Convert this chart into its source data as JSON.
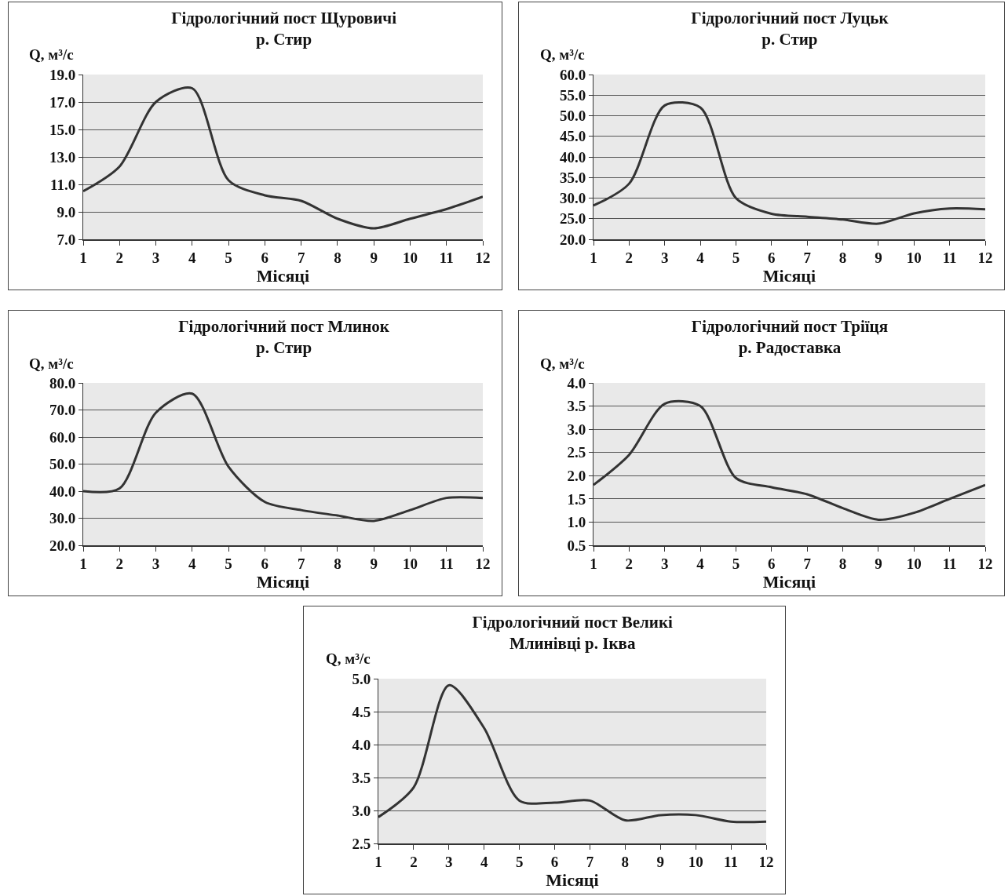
{
  "chart_data": [
    {
      "type": "line",
      "title": "Гідрологічний пост Щуровичі\nр. Стир",
      "xlabel": "Місяці",
      "ylabel": "Q, м³/с",
      "x": [
        1,
        2,
        3,
        4,
        5,
        6,
        7,
        8,
        9,
        10,
        11,
        12
      ],
      "series": [
        {
          "color": "#333333",
          "values": [
            10.5,
            12.3,
            17.0,
            18.0,
            11.3,
            10.2,
            9.8,
            8.5,
            7.8,
            8.5,
            9.2,
            10.1
          ]
        }
      ],
      "xlim": [
        1,
        12
      ],
      "xticks": [
        1,
        2,
        3,
        4,
        5,
        6,
        7,
        8,
        9,
        10,
        11,
        12
      ],
      "ylim": [
        7,
        19
      ],
      "yticks": [
        {
          "value": 7,
          "label": "7.0"
        },
        {
          "value": 9,
          "label": "9.0"
        },
        {
          "value": 11,
          "label": "11.0"
        },
        {
          "value": 13,
          "label": "13.0"
        },
        {
          "value": 15,
          "label": "15.0"
        },
        {
          "value": 17,
          "label": "17.0"
        },
        {
          "value": 19,
          "label": "19.0"
        }
      ],
      "grid": "y",
      "marker": "none",
      "line_style": "solid"
    },
    {
      "type": "line",
      "title": "Гідрологічний пост Луцьк\nр. Стир",
      "xlabel": "Місяці",
      "ylabel": "Q, м³/с",
      "x": [
        1,
        2,
        3,
        4,
        5,
        6,
        7,
        8,
        9,
        10,
        11,
        12
      ],
      "series": [
        {
          "color": "#333333",
          "values": [
            28.2,
            33.5,
            52.5,
            52.0,
            30.0,
            26.2,
            25.5,
            24.8,
            23.8,
            26.3,
            27.5,
            27.3
          ]
        }
      ],
      "xlim": [
        1,
        12
      ],
      "xticks": [
        1,
        2,
        3,
        4,
        5,
        6,
        7,
        8,
        9,
        10,
        11,
        12
      ],
      "ylim": [
        20,
        60
      ],
      "yticks": [
        {
          "value": 20,
          "label": "20.0"
        },
        {
          "value": 25,
          "label": "25.0"
        },
        {
          "value": 30,
          "label": "30.0"
        },
        {
          "value": 35,
          "label": "35.0"
        },
        {
          "value": 40,
          "label": "40.0"
        },
        {
          "value": 45,
          "label": "45.0"
        },
        {
          "value": 50,
          "label": "50.0"
        },
        {
          "value": 55,
          "label": "55.0"
        },
        {
          "value": 60,
          "label": "60.0"
        }
      ],
      "grid": "y",
      "marker": "none",
      "line_style": "solid"
    },
    {
      "type": "line",
      "title": "Гідрологічний пост Млинок\nр. Стир",
      "xlabel": "Місяці",
      "ylabel": "Q, м³/с",
      "x": [
        1,
        2,
        3,
        4,
        5,
        6,
        7,
        8,
        9,
        10,
        11,
        12
      ],
      "series": [
        {
          "color": "#333333",
          "values": [
            40.0,
            41.0,
            69.0,
            76.0,
            49.0,
            36.0,
            33.0,
            31.0,
            29.0,
            33.0,
            37.5,
            37.5
          ]
        }
      ],
      "xlim": [
        1,
        12
      ],
      "xticks": [
        1,
        2,
        3,
        4,
        5,
        6,
        7,
        8,
        9,
        10,
        11,
        12
      ],
      "ylim": [
        20,
        80
      ],
      "yticks": [
        {
          "value": 20,
          "label": "20.0"
        },
        {
          "value": 30,
          "label": "30.0"
        },
        {
          "value": 40,
          "label": "40.0"
        },
        {
          "value": 50,
          "label": "50.0"
        },
        {
          "value": 60,
          "label": "60.0"
        },
        {
          "value": 70,
          "label": "70.0"
        },
        {
          "value": 80,
          "label": "80.0"
        }
      ],
      "grid": "y",
      "marker": "none",
      "line_style": "solid"
    },
    {
      "type": "line",
      "title": "Гідрологічний пост Тріїця\nр. Радоставка",
      "xlabel": "Місяці",
      "ylabel": "Q, м³/с",
      "x": [
        1,
        2,
        3,
        4,
        5,
        6,
        7,
        8,
        9,
        10,
        11,
        12
      ],
      "series": [
        {
          "color": "#333333",
          "values": [
            1.8,
            2.45,
            3.55,
            3.5,
            1.95,
            1.75,
            1.6,
            1.3,
            1.05,
            1.2,
            1.5,
            1.8
          ]
        }
      ],
      "xlim": [
        1,
        12
      ],
      "xticks": [
        1,
        2,
        3,
        4,
        5,
        6,
        7,
        8,
        9,
        10,
        11,
        12
      ],
      "ylim": [
        0.5,
        4
      ],
      "yticks": [
        0.5,
        {
          "value": 1,
          "label": "1.0"
        },
        1.5,
        {
          "value": 2,
          "label": "2.0"
        },
        2.5,
        {
          "value": 3,
          "label": "3.0"
        },
        3.5,
        {
          "value": 4,
          "label": "4.0"
        }
      ],
      "grid": "y",
      "marker": "none",
      "line_style": "solid"
    },
    {
      "type": "line",
      "title": "Гідрологічний пост Великі\nМлинівці р. Іква",
      "xlabel": "Місяці",
      "ylabel": "Q, м³/с",
      "x": [
        1,
        2,
        3,
        4,
        5,
        6,
        7,
        8,
        9,
        10,
        11,
        12
      ],
      "series": [
        {
          "color": "#333333",
          "values": [
            2.9,
            3.35,
            4.9,
            4.25,
            3.15,
            3.12,
            3.15,
            2.85,
            2.93,
            2.93,
            2.83,
            2.83
          ]
        }
      ],
      "xlim": [
        1,
        12
      ],
      "xticks": [
        1,
        2,
        3,
        4,
        5,
        6,
        7,
        8,
        9,
        10,
        11,
        12
      ],
      "ylim": [
        2.5,
        5
      ],
      "yticks": [
        2.5,
        {
          "value": 3,
          "label": "3.0"
        },
        3.5,
        {
          "value": 4,
          "label": "4.0"
        },
        4.5,
        {
          "value": 5,
          "label": "5.0"
        }
      ],
      "grid": "y",
      "marker": "none",
      "line_style": "solid"
    }
  ]
}
